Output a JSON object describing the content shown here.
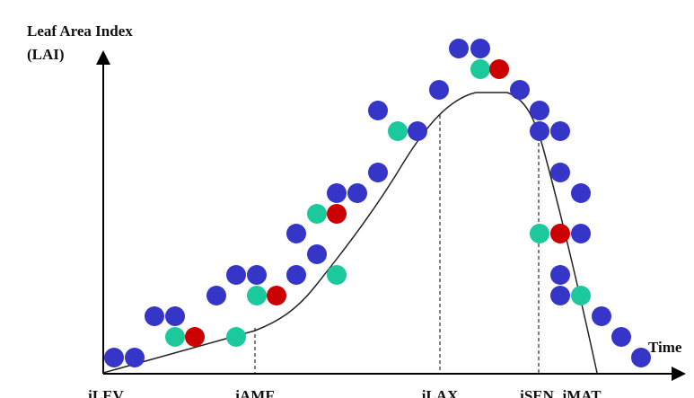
{
  "y_axis_label": {
    "line1": "Leaf Area Index",
    "line2": "(LAI)"
  },
  "x_axis_label": "Time",
  "stages": [
    "iLEV",
    "iAMF",
    "iLAX",
    "iSEN",
    "iMAT"
  ]
}
